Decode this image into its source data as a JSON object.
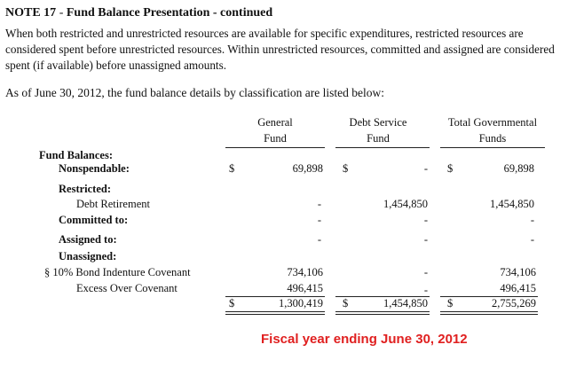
{
  "note": {
    "number": "NOTE 17",
    "separator": " - ",
    "title": "Fund Balance Presentation",
    "suffix": " - continued"
  },
  "paragraph": "When both restricted and unrestricted resources are available for specific expenditures, restricted resources are considered spent before unrestricted resources.  Within unrestricted resources, committed and assigned are considered spent (if available) before unassigned amounts.",
  "intro": "As of June 30, 2012, the fund balance details by classification are listed below:",
  "columns": {
    "general": [
      "General",
      "Fund"
    ],
    "debt": [
      "Debt Service",
      "Fund"
    ],
    "total": [
      "Total Governmental",
      "Funds"
    ]
  },
  "rows": {
    "fund_balances": "Fund Balances:",
    "nonspendable": {
      "label": "Nonspendable:",
      "cur": "$",
      "general": "69,898",
      "debt": "-",
      "total": "69,898"
    },
    "restricted": "Restricted:",
    "debt_retirement": {
      "label": "Debt Retirement",
      "general": "-",
      "debt": "1,454,850",
      "total": "1,454,850"
    },
    "committed": {
      "label": "Committed to:",
      "general": "-",
      "debt": "-",
      "total": "-"
    },
    "assigned": {
      "label": "Assigned to:",
      "general": "-",
      "debt": "-",
      "total": "-"
    },
    "unassigned": "Unassigned:",
    "bond_covenant": {
      "label": "§  10% Bond Indenture Covenant",
      "general": "734,106",
      "debt": "-",
      "total": "734,106"
    },
    "excess": {
      "label": "Excess Over Covenant",
      "general": "496,415",
      "debt": "-",
      "total": "496,415"
    },
    "totals": {
      "cur": "$",
      "general": "1,300,419",
      "debt": "1,454,850",
      "total": "2,755,269"
    }
  },
  "caption": "Fiscal year ending June 30, 2012",
  "colors": {
    "caption": "#e02020"
  }
}
